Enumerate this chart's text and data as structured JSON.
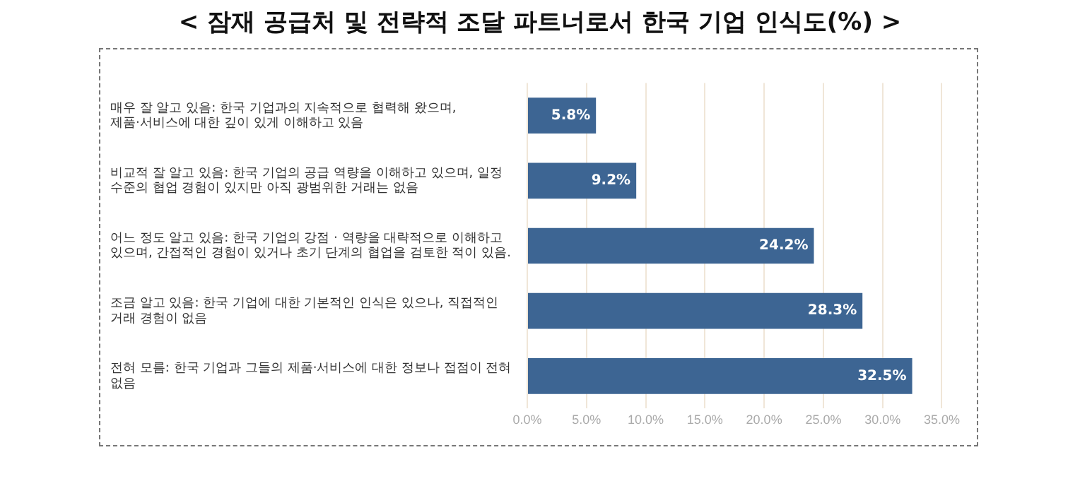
{
  "chart_data": {
    "type": "bar",
    "orientation": "horizontal",
    "title": "< 잠재 공급처 및 전략적 조달 파트너로서 한국 기업 인식도(%) >",
    "categories": [
      "매우 잘 알고 있음: 한국 기업과의 지속적으로 협력해 왔으며, 제품·서비스에 대한 깊이 있게 이해하고 있음",
      "비교적 잘 알고 있음: 한국 기업의 공급 역량을 이해하고 있으며, 일정 수준의 협업 경험이 있지만 아직 광범위한 거래는 없음",
      "어느 정도 알고 있음: 한국 기업의 강점 · 역량을 대략적으로 이해하고 있으며, 간접적인 경험이 있거나 초기 단계의 협업을 검토한 적이 있음.",
      "조금 알고 있음: 한국 기업에 대한 기본적인 인식은 있으나, 직접적인 거래 경험이 없음",
      "전혀 모름: 한국 기업과 그들의 제품·서비스에 대한 정보나 접점이 전혀 없음"
    ],
    "values": [
      5.8,
      9.2,
      24.2,
      28.3,
      32.5
    ],
    "color": "#3d6593",
    "xlim": [
      0,
      35
    ],
    "xticks": [
      {
        "value": 0,
        "label": "0.0%"
      },
      {
        "value": 5,
        "label": "5.0%"
      },
      {
        "value": 10,
        "label": "10.0%"
      },
      {
        "value": 15,
        "label": "15.0%"
      },
      {
        "value": 20,
        "label": "20.0%"
      },
      {
        "value": 25,
        "label": "25.0%"
      },
      {
        "value": 30,
        "label": "30.0%"
      },
      {
        "value": 35,
        "label": "35.0%"
      }
    ],
    "value_labels": [
      "5.8%",
      "9.2%",
      "24.2%",
      "28.3%",
      "32.5%"
    ],
    "grid": "x",
    "legend": false
  }
}
